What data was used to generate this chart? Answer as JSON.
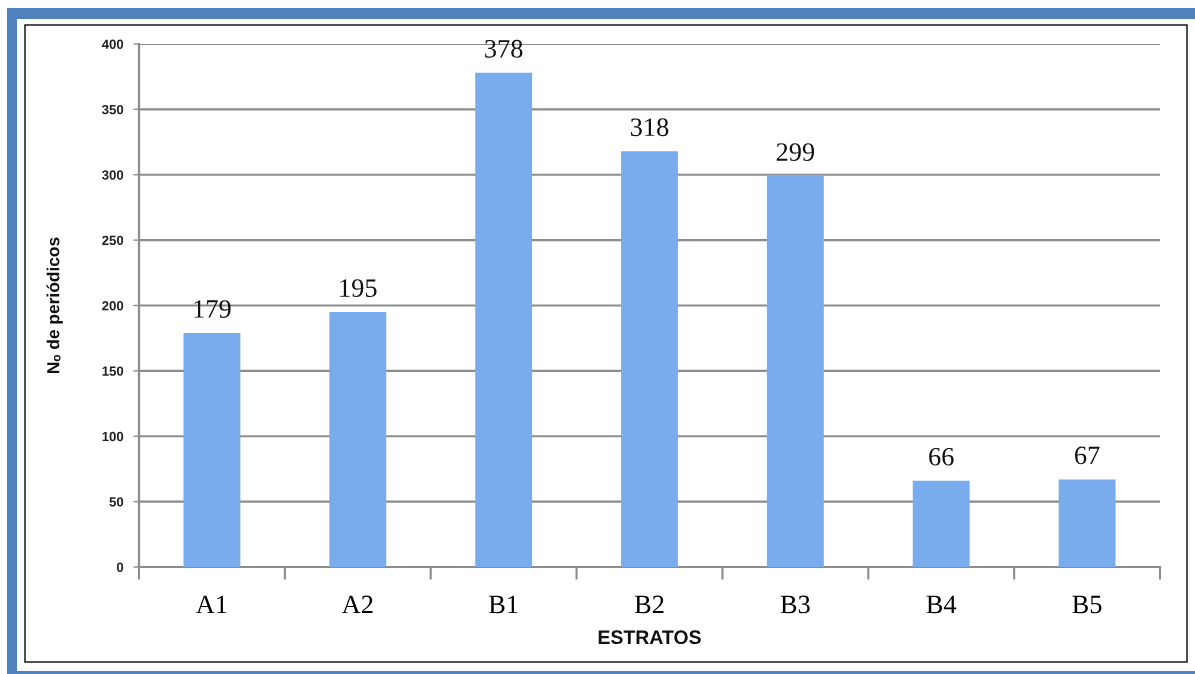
{
  "chart_data": {
    "type": "bar",
    "xlabel": "ESTRATOS",
    "ylabel": "Nₒ de periódicos",
    "categories": [
      "A1",
      "A2",
      "B1",
      "B2",
      "B3",
      "B4",
      "B5"
    ],
    "values": [
      179,
      195,
      378,
      318,
      299,
      66,
      67
    ],
    "color": "#78acec",
    "ylim": [
      0,
      400
    ],
    "yticks": [
      0,
      50,
      100,
      150,
      200,
      250,
      300,
      350,
      400
    ],
    "grid": "y",
    "data_labels": true
  }
}
